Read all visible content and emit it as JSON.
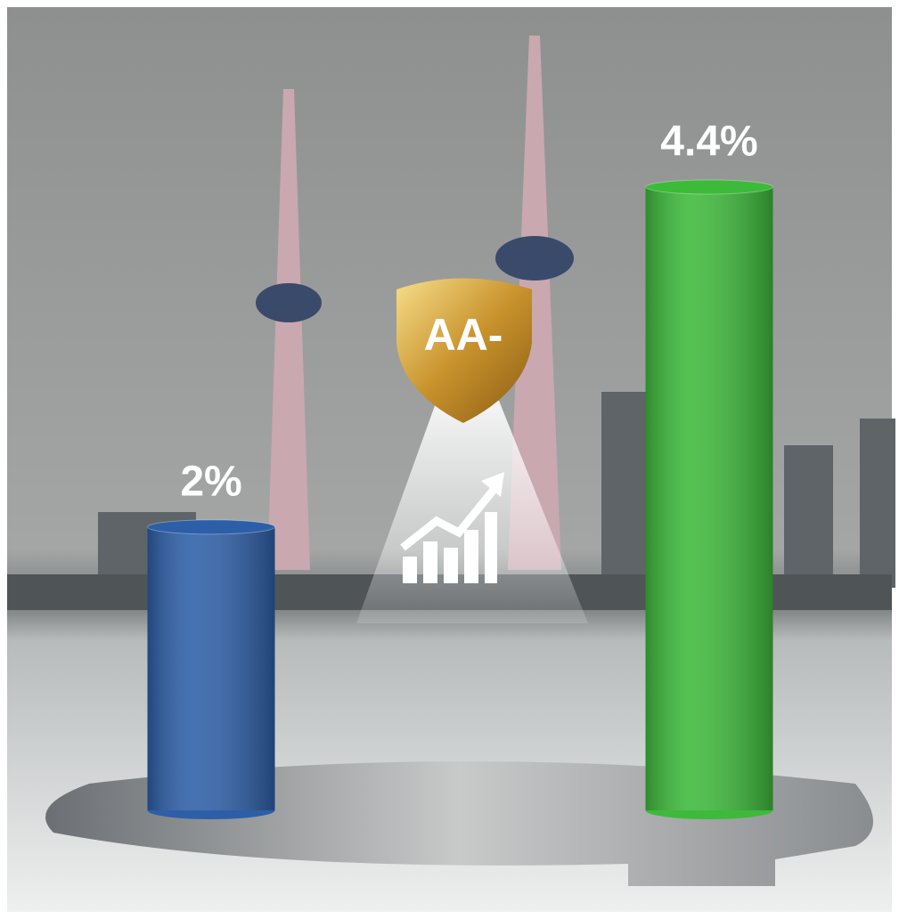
{
  "chart_data": {
    "type": "bar",
    "categories": [
      null,
      null
    ],
    "values": [
      2,
      4.4
    ],
    "value_labels": [
      "2%",
      "4.4%"
    ],
    "colors": [
      "#2d5fa8",
      "#3dba3a"
    ],
    "annotations": [
      "AA-"
    ]
  }
}
